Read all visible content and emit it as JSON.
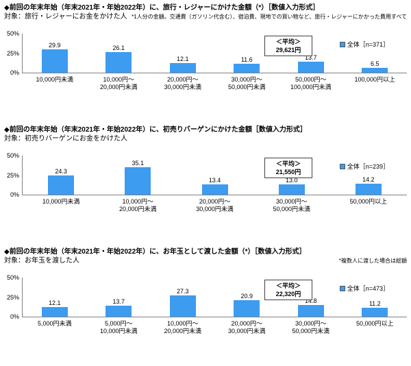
{
  "colors": {
    "bar": "#3D9BF0",
    "axis": "#808080"
  },
  "yticks": [
    "50%",
    "25%",
    "0%"
  ],
  "chart_data": [
    {
      "type": "bar",
      "title": "◆前回の年末年始（年末2021年・年始2022年）に、旅行・レジャーにかけた金額（*）［数値入力形式］",
      "target": "対象：旅行・レジャーにお金をかけた人",
      "note": "*1人分の金額。交通費（ガソリン代含む）、宿泊費、現地での買い物など、旅行・レジャーにかかった費用すべて",
      "average_label": "＜平均＞",
      "average_value": "29,621円",
      "legend": "全体［n=371］",
      "ylim": [
        0,
        50
      ],
      "grid": false,
      "categories": [
        "10,000円未満",
        "10,000円～\n20,000円未満",
        "20,000円～\n30,000円未満",
        "30,000円～\n50,000円未満",
        "50,000円～\n100,000円未満",
        "100,000円以上"
      ],
      "values": [
        29.9,
        26.1,
        12.1,
        11.6,
        13.7,
        6.5
      ],
      "labels": [
        "29.9",
        "26.1",
        "12.1",
        "11.6",
        "13.7",
        "6.5"
      ]
    },
    {
      "type": "bar",
      "title": "◆前回の年末年始（年末2021年・年始2022年）に、初売りバーゲンにかけた金額［数値入力形式］",
      "target": "対象：初売りバーゲンにお金をかけた人",
      "note": "",
      "average_label": "＜平均＞",
      "average_value": "21,550円",
      "legend": "全体［n=239］",
      "ylim": [
        0,
        50
      ],
      "grid": false,
      "categories": [
        "10,000円未満",
        "10,000円～\n20,000円未満",
        "20,000円～\n30,000円未満",
        "30,000円～\n50,000円未満",
        "50,000円以上"
      ],
      "values": [
        24.3,
        35.1,
        13.4,
        13.0,
        14.2
      ],
      "labels": [
        "24.3",
        "35.1",
        "13.4",
        "13.0",
        "14.2"
      ]
    },
    {
      "type": "bar",
      "title": "◆前回の年末年始（年末2021年・年始2022年）に、お年玉として渡した金額（*）［数値入力形式］",
      "target": "対象：お年玉を渡した人",
      "note": "*複数人に渡した場合は総額",
      "average_label": "＜平均＞",
      "average_value": "22,320円",
      "legend": "全体［n=473］",
      "ylim": [
        0,
        50
      ],
      "grid": false,
      "categories": [
        "5,000円未満",
        "5,000円～\n10,000円未満",
        "10,000円～\n20,000円未満",
        "20,000円～\n30,000円未満",
        "30,000円～\n50,000円未満",
        "50,000円以上"
      ],
      "values": [
        12.1,
        13.7,
        27.3,
        20.9,
        14.8,
        11.2
      ],
      "labels": [
        "12.1",
        "13.7",
        "27.3",
        "20.9",
        "14.8",
        "11.2"
      ]
    }
  ]
}
